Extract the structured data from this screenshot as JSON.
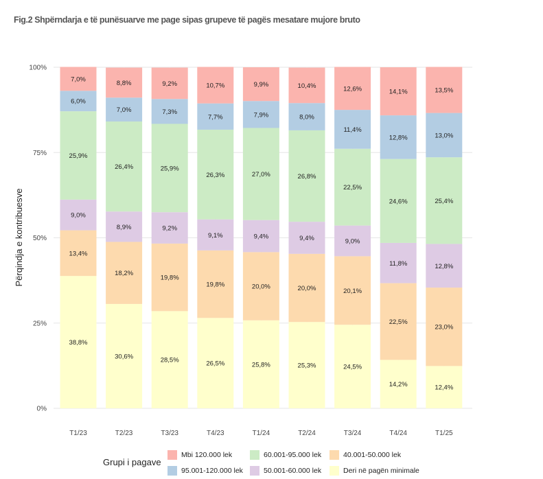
{
  "title": "Fig.2  Shpërndarja e të punësuarve me page sipas grupeve të pagës mesatare mujore bruto",
  "chart_data": {
    "type": "bar",
    "stacked": true,
    "categories": [
      "T1/23",
      "T2/23",
      "T3/23",
      "T4/23",
      "T1/24",
      "T2/24",
      "T3/24",
      "T4/24",
      "T1/25"
    ],
    "ylabel": "Përqindja e kontribuesve",
    "xlabel": "",
    "ylim": [
      0,
      100
    ],
    "yticks": [
      "0%",
      "25%",
      "50%",
      "75%",
      "100%"
    ],
    "grid": true,
    "legend_title": "Grupi i pagave",
    "legend_position": "bottom",
    "series": [
      {
        "name": "Deri në pagën minimale",
        "color": "#FFFFCC",
        "values": [
          38.8,
          30.6,
          28.5,
          26.5,
          25.8,
          25.3,
          24.5,
          14.2,
          12.4
        ],
        "labels": [
          "38,8%",
          "30,6%",
          "28,5%",
          "26,5%",
          "25,8%",
          "25,3%",
          "24,5%",
          "14,2%",
          "12,4%"
        ]
      },
      {
        "name": "40.001-50.000 lek",
        "color": "#FDDAAE",
        "values": [
          13.4,
          18.2,
          19.8,
          19.8,
          20.0,
          20.0,
          20.1,
          22.5,
          23.0
        ],
        "labels": [
          "13,4%",
          "18,2%",
          "19,8%",
          "19,8%",
          "20,0%",
          "20,0%",
          "20,1%",
          "22,5%",
          "23,0%"
        ]
      },
      {
        "name": "50.001-60.000 lek",
        "color": "#DECBE4",
        "values": [
          9.0,
          8.9,
          9.2,
          9.1,
          9.4,
          9.4,
          9.0,
          11.8,
          12.8
        ],
        "labels": [
          "9,0%",
          "8,9%",
          "9,2%",
          "9,1%",
          "9,4%",
          "9,4%",
          "9,0%",
          "11,8%",
          "12,8%"
        ]
      },
      {
        "name": "60.001-95.000 lek",
        "color": "#CCEBC5",
        "values": [
          25.9,
          26.4,
          25.9,
          26.3,
          27.0,
          26.8,
          22.5,
          24.6,
          25.4
        ],
        "labels": [
          "25,9%",
          "26,4%",
          "25,9%",
          "26,3%",
          "27,0%",
          "26,8%",
          "22,5%",
          "24,6%",
          "25,4%"
        ]
      },
      {
        "name": "95.001-120.000 lek",
        "color": "#B3CDE3",
        "values": [
          6.0,
          7.0,
          7.3,
          7.7,
          7.9,
          8.0,
          11.4,
          12.8,
          13.0
        ],
        "labels": [
          "6,0%",
          "7,0%",
          "7,3%",
          "7,7%",
          "7,9%",
          "8,0%",
          "11,4%",
          "12,8%",
          "13,0%"
        ]
      },
      {
        "name": "Mbi 120.000 lek",
        "color": "#FBB4AE",
        "values": [
          7.0,
          8.8,
          9.2,
          10.7,
          9.9,
          10.4,
          12.6,
          14.1,
          13.5
        ],
        "labels": [
          "7,0%",
          "8,8%",
          "9,2%",
          "10,7%",
          "9,9%",
          "10,4%",
          "12,6%",
          "14,1%",
          "13,5%"
        ]
      }
    ]
  },
  "legend_items": [
    {
      "name": "Mbi 120.000 lek",
      "color": "#FBB4AE"
    },
    {
      "name": "60.001-95.000 lek",
      "color": "#CCEBC5"
    },
    {
      "name": "40.001-50.000 lek",
      "color": "#FDDAAE"
    },
    {
      "name": "95.001-120.000 lek",
      "color": "#B3CDE3"
    },
    {
      "name": "50.001-60.000 lek",
      "color": "#DECBE4"
    },
    {
      "name": "Deri në pagën minimale",
      "color": "#FFFFCC"
    }
  ]
}
